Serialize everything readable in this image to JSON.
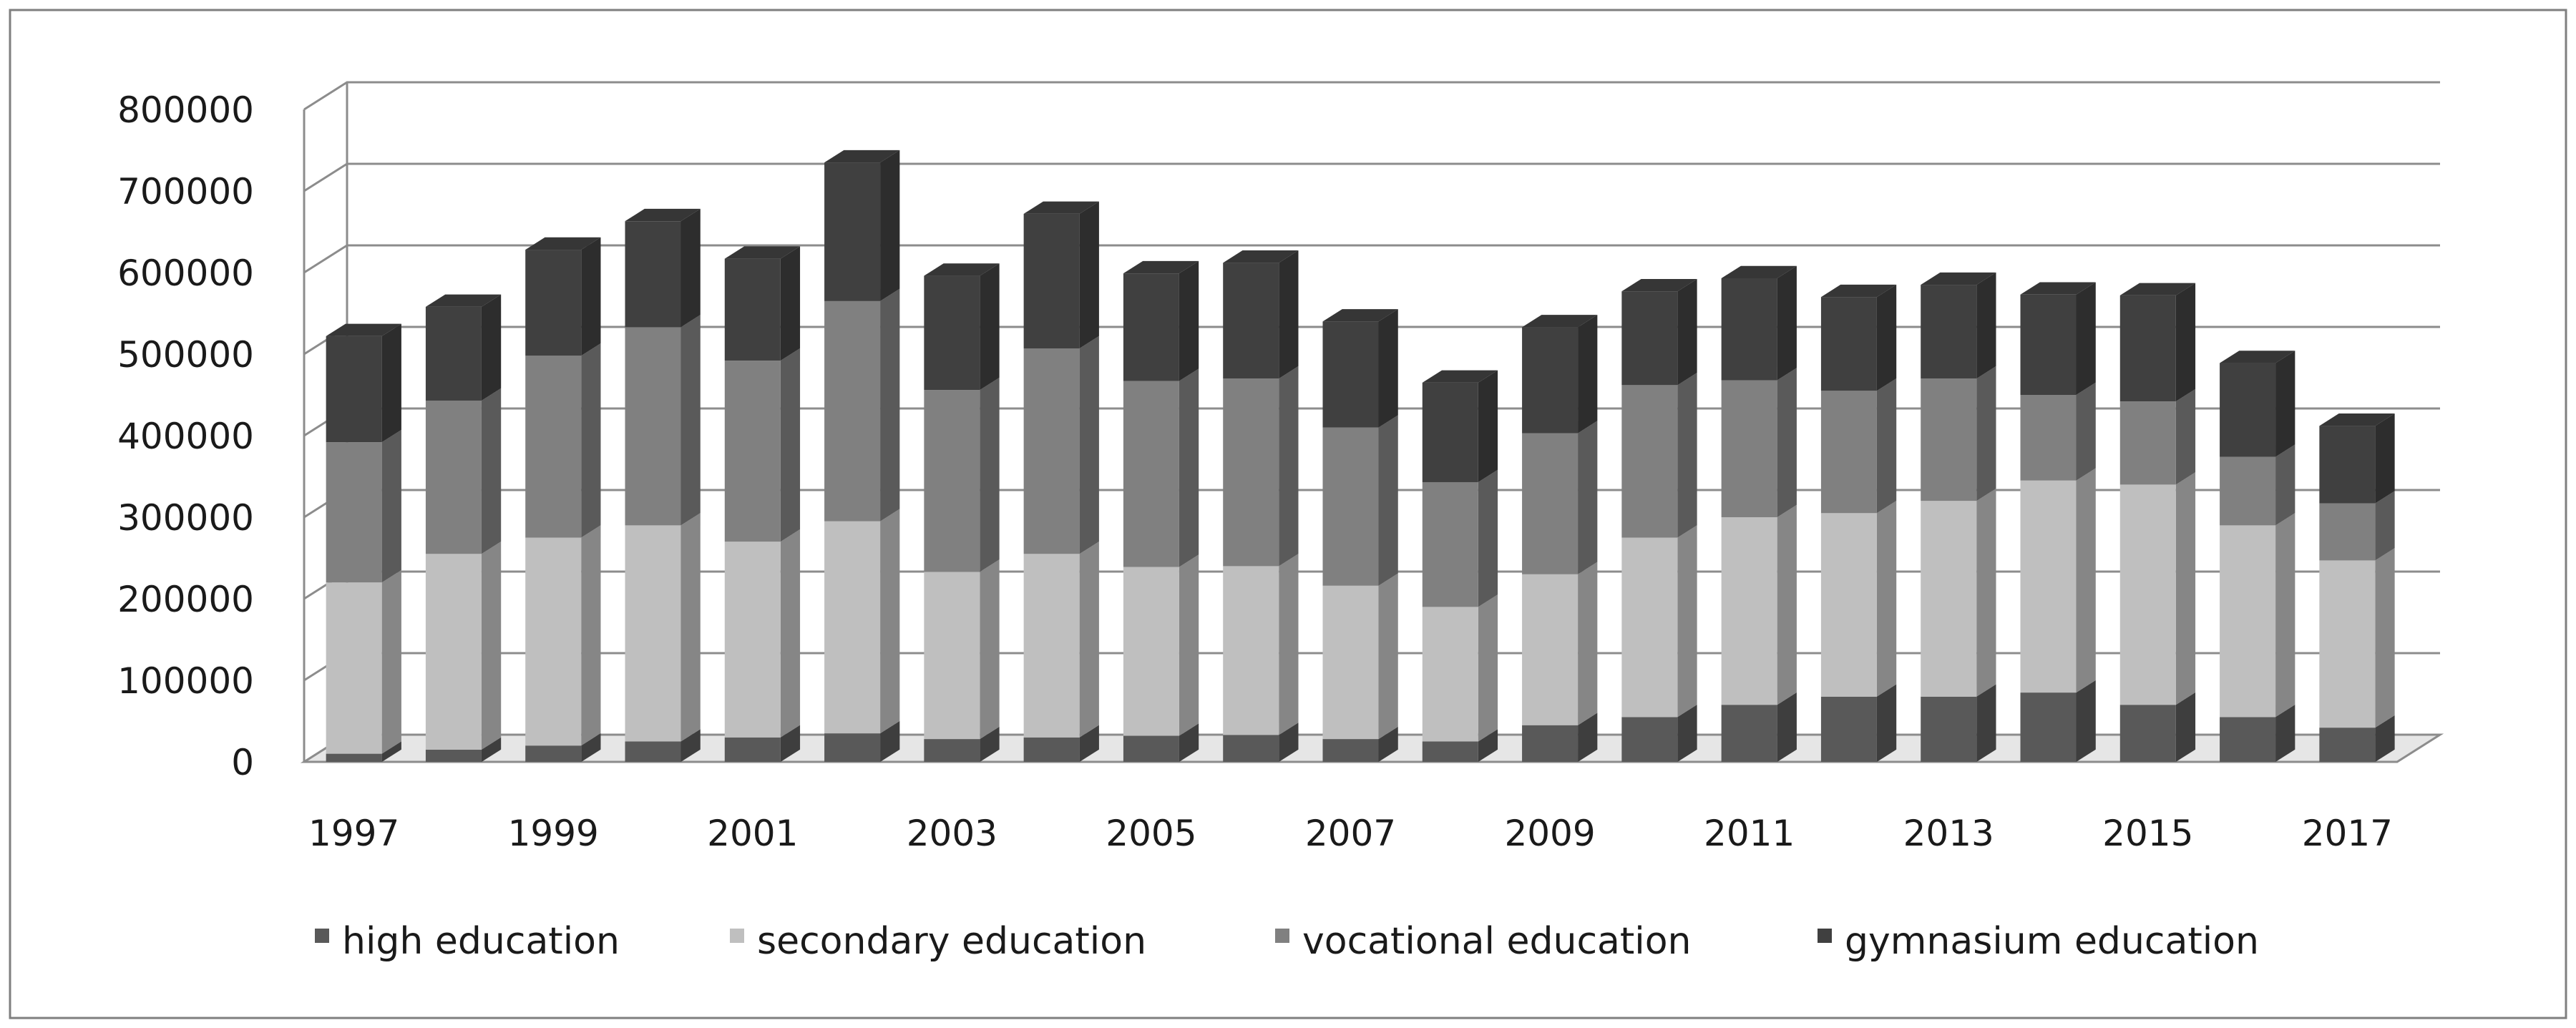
{
  "chart_data": {
    "type": "bar",
    "stacked": true,
    "three_d": true,
    "categories": [
      "1997",
      "1998",
      "1999",
      "2000",
      "2001",
      "2002",
      "2003",
      "2004",
      "2005",
      "2006",
      "2007",
      "2008",
      "2009",
      "2010",
      "2011",
      "2012",
      "2013",
      "2014",
      "2015",
      "2016",
      "2017"
    ],
    "x_tick_labels": [
      "1997",
      "",
      "1999",
      "",
      "2001",
      "",
      "2003",
      "",
      "2005",
      "",
      "2007",
      "",
      "2009",
      "",
      "2011",
      "",
      "2013",
      "",
      "2015",
      "",
      "2017"
    ],
    "series": [
      {
        "name": "high education",
        "color": "#595959",
        "values": [
          10000,
          15000,
          20000,
          25000,
          30000,
          35000,
          28000,
          30000,
          32000,
          33000,
          28000,
          25000,
          45000,
          55000,
          70000,
          80000,
          80000,
          85000,
          70000,
          55000,
          42000
        ]
      },
      {
        "name": "secondary education",
        "color": "#bfbfbf",
        "values": [
          210000,
          240000,
          255000,
          265000,
          240000,
          260000,
          205000,
          225000,
          207000,
          207000,
          188000,
          165000,
          185000,
          220000,
          230000,
          225000,
          240000,
          260000,
          270000,
          235000,
          205000
        ]
      },
      {
        "name": "vocational education",
        "color": "#808080",
        "values": [
          172000,
          188000,
          223000,
          243000,
          222000,
          270000,
          223000,
          252000,
          228000,
          230000,
          194000,
          153000,
          173000,
          187000,
          168000,
          150000,
          150000,
          105000,
          102000,
          84000,
          70000
        ]
      },
      {
        "name": "gymnasium education",
        "color": "#404040",
        "values": [
          130000,
          115000,
          130000,
          130000,
          125000,
          170000,
          140000,
          165000,
          132000,
          142000,
          130000,
          122000,
          130000,
          115000,
          125000,
          115000,
          115000,
          123000,
          130000,
          115000,
          95000
        ]
      }
    ],
    "y_ticks": [
      "0",
      "100000",
      "200000",
      "300000",
      "400000",
      "500000",
      "600000",
      "700000",
      "800000"
    ],
    "ylim": [
      0,
      800000
    ],
    "grid": true,
    "legend_position": "bottom"
  }
}
